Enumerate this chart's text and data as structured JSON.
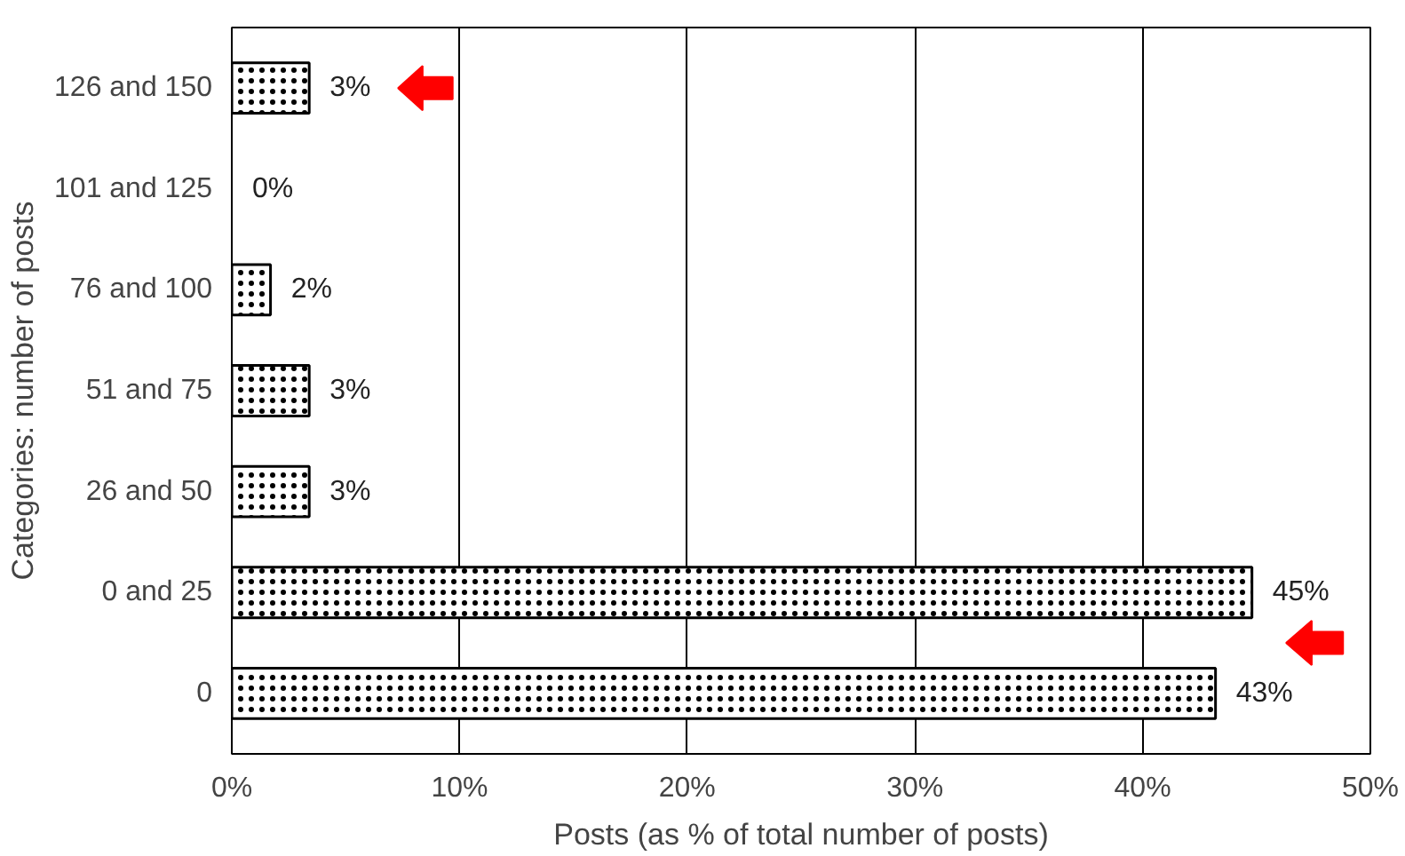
{
  "chart_data": {
    "type": "bar",
    "orientation": "horizontal",
    "xlabel": "Posts (as % of total number of posts)",
    "ylabel": "Categories: number of posts",
    "categories": [
      "126 and 150",
      "101 and 125",
      "76 and 100",
      "51 and 75",
      "26 and 50",
      "0 and 25",
      "0"
    ],
    "values": [
      3.4,
      0,
      1.7,
      3.4,
      3.4,
      44.8,
      43.2
    ],
    "value_labels": [
      "3%",
      "0%",
      "2%",
      "3%",
      "3%",
      "45%",
      "43%"
    ],
    "color": "#ffffff",
    "xlim": [
      0,
      50
    ],
    "xticks": [
      {
        "value": 0,
        "label": "0%"
      },
      {
        "value": 10,
        "label": "10%"
      },
      {
        "value": 20,
        "label": "20%"
      },
      {
        "value": 30,
        "label": "30%"
      },
      {
        "value": 40,
        "label": "40%"
      },
      {
        "value": 50,
        "label": "50%"
      }
    ],
    "grid": "x"
  }
}
